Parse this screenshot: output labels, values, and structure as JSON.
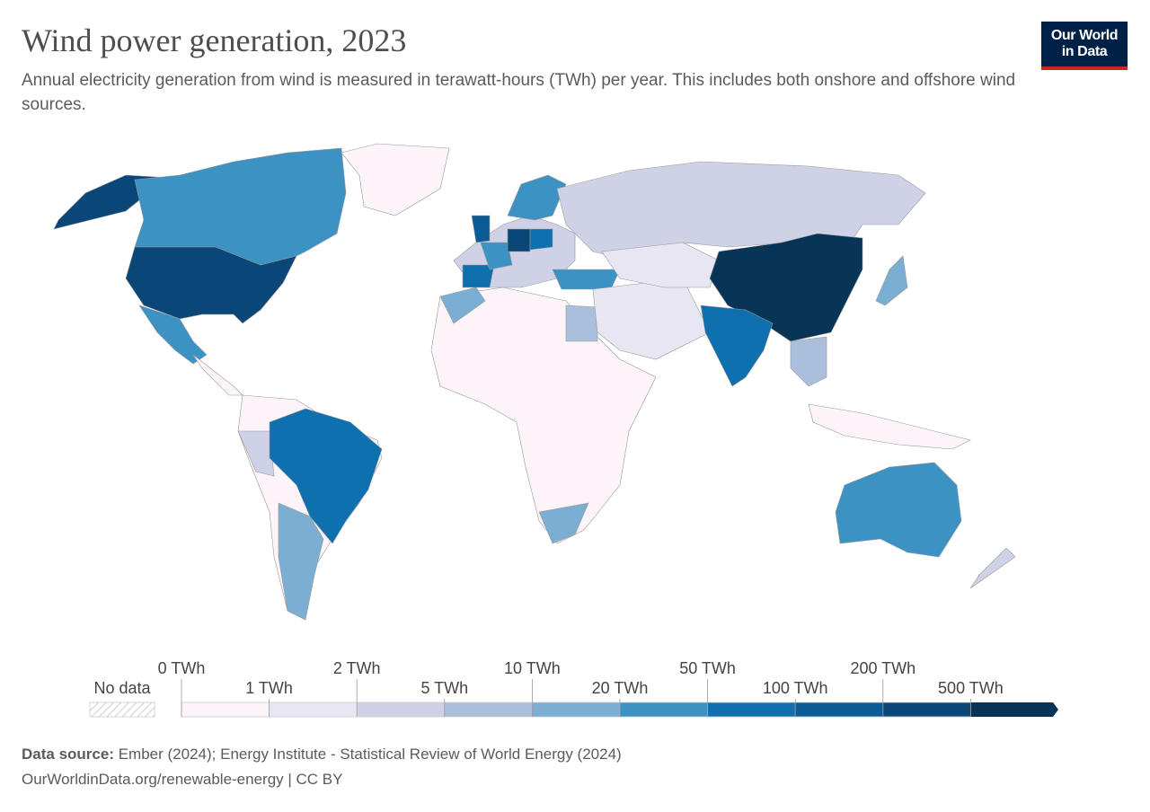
{
  "header": {
    "title": "Wind power generation, 2023",
    "subtitle": "Annual electricity generation from wind is measured in terawatt-hours (TWh) per year. This includes both onshore and offshore wind sources."
  },
  "logo": {
    "line1": "Our World",
    "line2": "in Data"
  },
  "legend": {
    "no_data": "No data",
    "ticks": [
      {
        "value": 0,
        "label": "0 TWh"
      },
      {
        "value": 1,
        "label": "1 TWh"
      },
      {
        "value": 2,
        "label": "2 TWh"
      },
      {
        "value": 5,
        "label": "5 TWh"
      },
      {
        "value": 10,
        "label": "10 TWh"
      },
      {
        "value": 20,
        "label": "20 TWh"
      },
      {
        "value": 50,
        "label": "50 TWh"
      },
      {
        "value": 100,
        "label": "100 TWh"
      },
      {
        "value": 200,
        "label": "200 TWh"
      },
      {
        "value": 500,
        "label": "500 TWh"
      }
    ],
    "colors": [
      "#fcf4f9",
      "#e8e6f2",
      "#cfd2e6",
      "#a9bfdc",
      "#7aaed3",
      "#3d92c4",
      "#0f70b0",
      "#0b5c96",
      "#0a4677",
      "#083457"
    ]
  },
  "footer": {
    "source_label": "Data source:",
    "source": "Ember (2024); Energy Institute - Statistical Review of World Energy (2024)",
    "url": "OurWorldinData.org/renewable-energy | CC BY"
  }
}
